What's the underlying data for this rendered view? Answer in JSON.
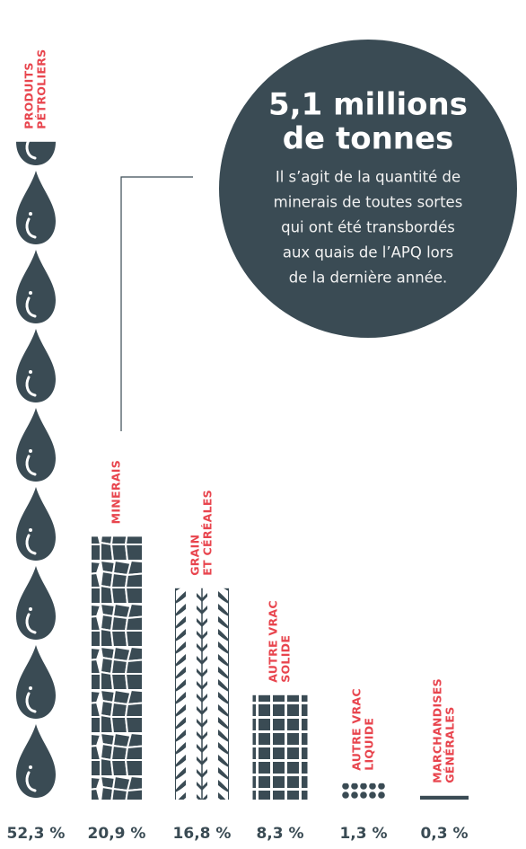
{
  "chart_data": {
    "type": "pictograph",
    "categories": [
      [
        "PRODUITS",
        "PÉTROLIERS"
      ],
      [
        "MINERAIS"
      ],
      [
        "GRAIN",
        "ET CÉRÉALES"
      ],
      [
        "AUTRE VRAC",
        "SOLIDE"
      ],
      [
        "AUTRE VRAC",
        "LIQUIDE"
      ],
      [
        "MARCHANDISES",
        "GÉNÉRALES"
      ]
    ],
    "values": [
      52.3,
      20.9,
      16.8,
      8.3,
      1.3,
      0.3
    ],
    "value_labels": [
      "52,3 %",
      "20,9 %",
      "16,8 %",
      "8,3 %",
      "1,3 %",
      "0,3 %"
    ],
    "color": "#3a4b54",
    "label_color": "#e8454e",
    "annotation": {
      "title": [
        "5,1 millions",
        "de tonnes"
      ],
      "text": [
        "Il s’agit de la quantité de",
        "minerais de toutes sortes",
        "qui ont été transbordés",
        "aux quais de l’APQ lors",
        "de la dernière année."
      ]
    }
  }
}
